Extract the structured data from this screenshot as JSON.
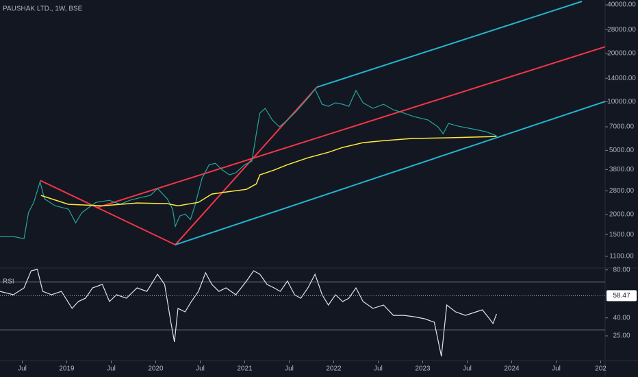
{
  "chart_data": [
    {
      "type": "line",
      "title": "PAUSHAK LTD., 1W, BSE",
      "log_scale": true,
      "xlim": [
        2018.25,
        2025.05
      ],
      "xticks": [
        {
          "value": 2018.5,
          "label": "Jul"
        },
        2019,
        {
          "value": 2019.5,
          "label": "Jul"
        },
        2020,
        {
          "value": 2020.5,
          "label": "Jul"
        },
        2021,
        {
          "value": 2021.5,
          "label": "Jul"
        },
        2022,
        {
          "value": 2022.5,
          "label": "Jul"
        },
        2023,
        {
          "value": 2023.5,
          "label": "Jul"
        },
        2024,
        {
          "value": 2024.5,
          "label": "Jul"
        },
        {
          "value": 2025,
          "label": "202"
        }
      ],
      "ylim": [
        940,
        42850
      ],
      "yticks": [
        {
          "value": 40000,
          "label": "40000.00"
        },
        {
          "value": 28000,
          "label": "28000.00"
        },
        {
          "value": 20000,
          "label": "20000.00"
        },
        {
          "value": 14000,
          "label": "14000.00"
        },
        {
          "value": 10000,
          "label": "10000.00"
        },
        {
          "value": 7000,
          "label": "7000.00"
        },
        {
          "value": 5000,
          "label": "5000.00"
        },
        {
          "value": 3800,
          "label": "3800.00"
        },
        {
          "value": 2800,
          "label": "2800.00"
        },
        {
          "value": 2000,
          "label": "2000.00"
        },
        {
          "value": 1500,
          "label": "1500.00"
        },
        {
          "value": 1100,
          "label": "1100.00"
        }
      ],
      "series": [
        {
          "color": "#26a69a",
          "x": [
            2018.25,
            2018.4,
            2018.52,
            2018.57,
            2018.63,
            2018.7,
            2018.75,
            2018.87,
            2019.02,
            2019.1,
            2019.17,
            2019.33,
            2019.48,
            2019.6,
            2019.71,
            2019.83,
            2019.94,
            2020.02,
            2020.13,
            2020.19,
            2020.22,
            2020.27,
            2020.33,
            2020.39,
            2020.44,
            2020.52,
            2020.6,
            2020.67,
            2020.75,
            2020.83,
            2020.9,
            2021.0,
            2021.08,
            2021.13,
            2021.17,
            2021.23,
            2021.31,
            2021.39,
            2021.48,
            2021.56,
            2021.63,
            2021.73,
            2021.79,
            2021.87,
            2021.94,
            2022.02,
            2022.1,
            2022.17,
            2022.25,
            2022.33,
            2022.44,
            2022.56,
            2022.67,
            2022.79,
            2022.9,
            2023.06,
            2023.17,
            2023.23,
            2023.29,
            2023.4,
            2023.56,
            2023.71,
            2023.83
          ],
          "values": [
            1459,
            1459,
            1416,
            2056,
            2379,
            3191,
            2500,
            2265,
            2158,
            1774,
            2056,
            2379,
            2449,
            2312,
            2449,
            2547,
            2625,
            2897,
            2500,
            2158,
            1690,
            1955,
            2014,
            1862,
            2265,
            3351,
            4074,
            4155,
            3773,
            3524,
            3629,
            4074,
            4285,
            6339,
            8504,
            9117,
            7714,
            6998,
            7714,
            8504,
            9382,
            10864,
            11995,
            9661,
            9382,
            9863,
            9661,
            9382,
            11749,
            9863,
            9117,
            9661,
            8933,
            8504,
            8097,
            7714,
            6998,
            6339,
            7345,
            7060,
            6792,
            6531,
            6152
          ]
        },
        {
          "color": "#ffeb3b",
          "x": [
            2018.71,
            2019.02,
            2019.4,
            2019.79,
            2020.13,
            2020.25,
            2020.48,
            2020.63,
            2020.79,
            2021.02,
            2021.13,
            2021.17,
            2021.33,
            2021.48,
            2021.71,
            2021.94,
            2022.1,
            2022.33,
            2022.56,
            2022.87,
            2023.25,
            2023.83
          ],
          "values": [
            2625,
            2312,
            2265,
            2358,
            2335,
            2265,
            2379,
            2677,
            2757,
            2864,
            3097,
            3524,
            3773,
            4074,
            4497,
            4864,
            5210,
            5582,
            5745,
            5918,
            5980,
            6099
          ]
        }
      ],
      "annotations": [
        {
          "color": "#f23645",
          "x": [
            2018.7,
            2020.22,
            2021.81
          ],
          "values": [
            3258,
            1297,
            12331
          ]
        },
        {
          "color": "#f23645",
          "x": [
            2019.33,
            2025.05
          ],
          "values": [
            2198,
            21979
          ]
        },
        {
          "color": "#22b5d0",
          "x": [
            2021.81,
            2024.79
          ],
          "values": [
            12331,
            42000
          ]
        },
        {
          "color": "#22b5d0",
          "x": [
            2020.22,
            2025.05
          ],
          "values": [
            1297,
            10046
          ]
        }
      ]
    },
    {
      "type": "line",
      "title": "RSI",
      "ylim": [
        5,
        81
      ],
      "yticks": [
        {
          "value": 80,
          "label": "80.00"
        },
        {
          "value": 40,
          "label": "40.00"
        },
        {
          "value": 25,
          "label": "25.00"
        }
      ],
      "bands": [
        70,
        30
      ],
      "last_value": 58.47,
      "series": [
        {
          "color": "#e0e3eb",
          "x": [
            2018.25,
            2018.4,
            2018.52,
            2018.6,
            2018.67,
            2018.73,
            2018.83,
            2018.94,
            2019.06,
            2019.13,
            2019.21,
            2019.29,
            2019.4,
            2019.48,
            2019.56,
            2019.67,
            2019.79,
            2019.9,
            2020.02,
            2020.1,
            2020.17,
            2020.21,
            2020.25,
            2020.33,
            2020.4,
            2020.48,
            2020.56,
            2020.63,
            2020.71,
            2020.79,
            2020.9,
            2021.02,
            2021.1,
            2021.17,
            2021.25,
            2021.33,
            2021.4,
            2021.48,
            2021.56,
            2021.63,
            2021.71,
            2021.79,
            2021.87,
            2021.94,
            2022.02,
            2022.1,
            2022.17,
            2022.25,
            2022.33,
            2022.44,
            2022.56,
            2022.67,
            2022.79,
            2022.9,
            2023.02,
            2023.13,
            2023.21,
            2023.27,
            2023.37,
            2023.48,
            2023.6,
            2023.67,
            2023.75,
            2023.79,
            2023.83
          ],
          "values": [
            62.1,
            59.3,
            65.0,
            79.3,
            80.4,
            62.1,
            59.3,
            62.1,
            47.9,
            53.6,
            56.4,
            65.0,
            67.9,
            53.6,
            59.3,
            56.4,
            65.0,
            62.1,
            76.4,
            67.9,
            36.4,
            19.9,
            47.9,
            45.0,
            53.6,
            62.1,
            77.6,
            67.9,
            62.1,
            65.0,
            59.3,
            70.7,
            79.3,
            76.4,
            67.9,
            65.0,
            62.1,
            70.7,
            59.3,
            56.4,
            65.0,
            76.4,
            59.3,
            50.7,
            59.3,
            53.6,
            56.4,
            65.0,
            53.6,
            47.9,
            50.7,
            42.1,
            42.1,
            41.0,
            39.3,
            36.4,
            7.9,
            50.7,
            45.0,
            42.1,
            45.0,
            46.7,
            39.3,
            35.3,
            43.3
          ]
        }
      ]
    }
  ]
}
